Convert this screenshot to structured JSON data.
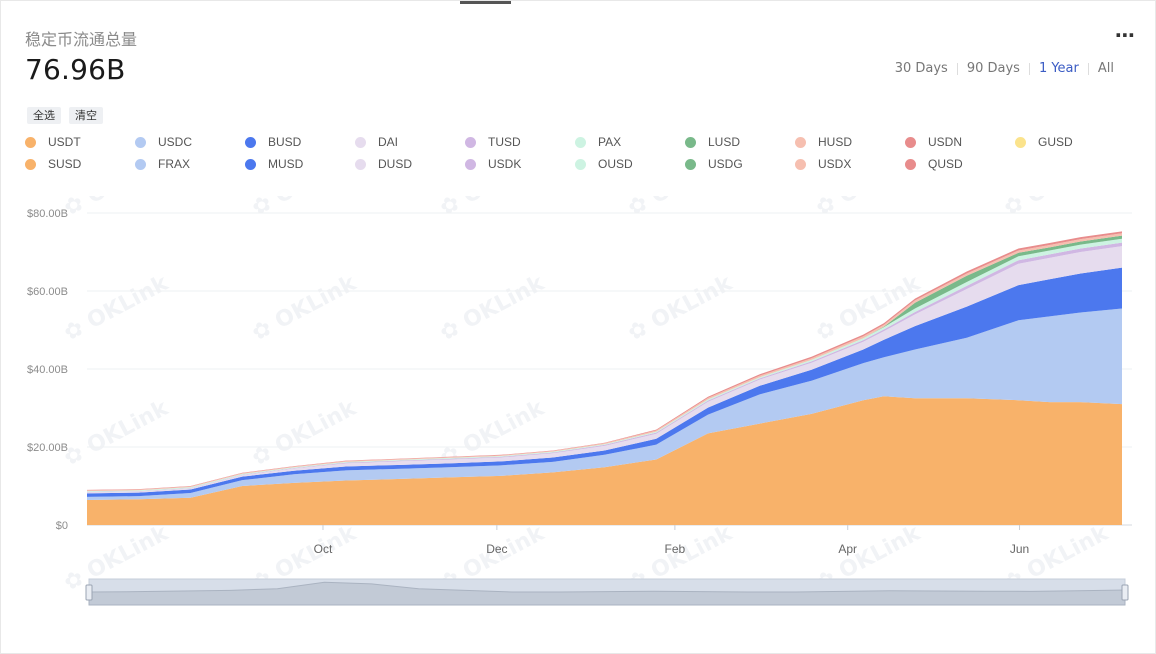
{
  "title": "稳定币流通总量",
  "total": "76.96B",
  "menu_icon": "more-icon",
  "ranges": [
    {
      "label": "30 Days",
      "active": false
    },
    {
      "label": "90 Days",
      "active": false
    },
    {
      "label": "1 Year",
      "active": true
    },
    {
      "label": "All",
      "active": false
    }
  ],
  "buttons": {
    "select_all": "全选",
    "clear": "清空"
  },
  "watermark": "OKLink",
  "legend": [
    {
      "name": "USDT",
      "color": "#f8b26a"
    },
    {
      "name": "USDC",
      "color": "#b3caf2"
    },
    {
      "name": "BUSD",
      "color": "#4c78ee"
    },
    {
      "name": "DAI",
      "color": "#e6dcee"
    },
    {
      "name": "TUSD",
      "color": "#d0b7e3"
    },
    {
      "name": "PAX",
      "color": "#cdf3e2"
    },
    {
      "name": "LUSD",
      "color": "#79b98a"
    },
    {
      "name": "HUSD",
      "color": "#f6bfb0"
    },
    {
      "name": "USDN",
      "color": "#e88c8c"
    },
    {
      "name": "GUSD",
      "color": "#fbe38c"
    },
    {
      "name": "SUSD",
      "color": "#f8b26a"
    },
    {
      "name": "FRAX",
      "color": "#b3caf2"
    },
    {
      "name": "MUSD",
      "color": "#4c78ee"
    },
    {
      "name": "DUSD",
      "color": "#e6dcee"
    },
    {
      "name": "USDK",
      "color": "#d0b7e3"
    },
    {
      "name": "OUSD",
      "color": "#cdf3e2"
    },
    {
      "name": "USDG",
      "color": "#79b98a"
    },
    {
      "name": "USDX",
      "color": "#f6bfb0"
    },
    {
      "name": "QUSD",
      "color": "#e88c8c"
    }
  ],
  "chart_data": {
    "type": "area",
    "stacked": true,
    "y_ticks": [
      "$0",
      "$20.00B",
      "$40.00B",
      "$60.00B",
      "$80.00B"
    ],
    "ylim": [
      0,
      80
    ],
    "y_unit": "B USD",
    "x_ticks": [
      {
        "label": "Oct",
        "t": 0.228
      },
      {
        "label": "Dec",
        "t": 0.396
      },
      {
        "label": "Feb",
        "t": 0.568
      },
      {
        "label": "Apr",
        "t": 0.735
      },
      {
        "label": "Jun",
        "t": 0.901
      }
    ],
    "x": [
      0,
      0.05,
      0.1,
      0.15,
      0.2,
      0.25,
      0.3,
      0.35,
      0.4,
      0.45,
      0.5,
      0.55,
      0.6,
      0.65,
      0.7,
      0.75,
      0.77,
      0.8,
      0.85,
      0.9,
      0.93,
      0.96,
      1.0
    ],
    "series": [
      {
        "name": "USDT",
        "color": "#f8b26a",
        "values": [
          6.4,
          6.6,
          7,
          10,
          10.8,
          11.4,
          11.8,
          12.2,
          12.6,
          13.5,
          14.8,
          16.8,
          23.5,
          26,
          28.5,
          32,
          33,
          32.5,
          32.5,
          32,
          31.5,
          31.5,
          31
        ]
      },
      {
        "name": "USDC",
        "color": "#b3caf2",
        "values": [
          0.8,
          0.8,
          1.2,
          1.5,
          2.2,
          2.6,
          2.6,
          2.6,
          2.7,
          2.7,
          3.2,
          3.8,
          4.8,
          7.5,
          8.5,
          9.5,
          10,
          12.5,
          15.5,
          20.5,
          22,
          23,
          24.5
        ]
      },
      {
        "name": "BUSD",
        "color": "#4c78ee",
        "values": [
          0.9,
          0.9,
          0.9,
          0.9,
          0.9,
          1,
          1,
          1,
          1,
          1.1,
          1.1,
          1.5,
          1.8,
          2.2,
          2.8,
          3.5,
          4.5,
          6,
          8,
          9,
          9.5,
          10,
          10.5
        ]
      },
      {
        "name": "DAI",
        "color": "#e6dcee",
        "values": [
          0.3,
          0.3,
          0.3,
          0.4,
          0.6,
          0.8,
          0.9,
          1,
          1,
          1.1,
          1.2,
          1.3,
          1.5,
          1.6,
          1.8,
          2,
          2.2,
          3,
          4.5,
          5.5,
          5.5,
          5.5,
          5.5
        ]
      },
      {
        "name": "TUSD",
        "color": "#d0b7e3",
        "values": [
          0.1,
          0.1,
          0.1,
          0.1,
          0.1,
          0.2,
          0.2,
          0.2,
          0.2,
          0.2,
          0.25,
          0.3,
          0.3,
          0.3,
          0.35,
          0.4,
          0.45,
          0.6,
          0.8,
          0.9,
          0.9,
          0.9,
          0.9
        ]
      },
      {
        "name": "PAX",
        "color": "#cdf3e2",
        "values": [
          0.2,
          0.2,
          0.2,
          0.2,
          0.2,
          0.2,
          0.2,
          0.2,
          0.2,
          0.2,
          0.2,
          0.25,
          0.3,
          0.3,
          0.4,
          0.5,
          0.6,
          0.9,
          1,
          1,
          1,
          1,
          1
        ]
      },
      {
        "name": "LUSD",
        "color": "#79b98a",
        "values": [
          0,
          0,
          0,
          0,
          0,
          0,
          0,
          0,
          0,
          0,
          0,
          0,
          0,
          0,
          0,
          0,
          0.1,
          1.5,
          1.6,
          0.9,
          0.8,
          0.8,
          0.8
        ]
      },
      {
        "name": "HUSD",
        "color": "#f6bfb0",
        "values": [
          0.2,
          0.2,
          0.2,
          0.2,
          0.2,
          0.2,
          0.2,
          0.2,
          0.2,
          0.2,
          0.25,
          0.3,
          0.4,
          0.4,
          0.4,
          0.5,
          0.5,
          0.6,
          0.6,
          0.6,
          0.6,
          0.6,
          0.6
        ]
      },
      {
        "name": "USDN",
        "color": "#e88c8c",
        "values": [
          0.1,
          0.1,
          0.1,
          0.1,
          0.1,
          0.1,
          0.1,
          0.1,
          0.1,
          0.1,
          0.1,
          0.2,
          0.3,
          0.35,
          0.4,
          0.4,
          0.4,
          0.45,
          0.5,
          0.5,
          0.5,
          0.5,
          0.5
        ]
      }
    ],
    "overview_values": [
      8,
      8.2,
      8.6,
      9,
      10,
      14,
      13,
      10,
      9,
      8,
      8,
      8.2,
      8.5,
      8.2,
      8,
      8,
      8.4,
      8.8,
      8.6,
      8.5,
      8.4,
      8.8,
      9.2
    ]
  }
}
